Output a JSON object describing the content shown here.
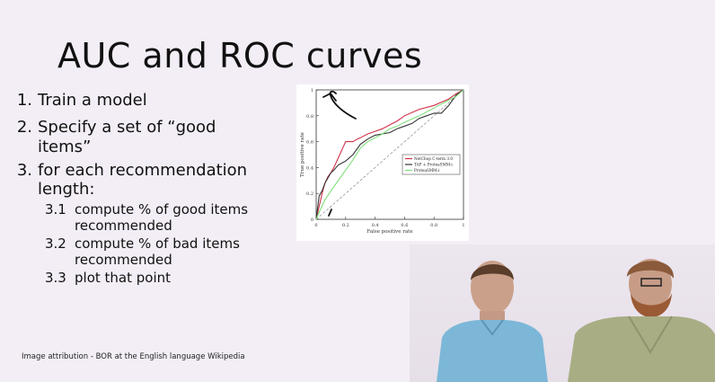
{
  "slide": {
    "title": "AUC and ROC curves",
    "steps": [
      {
        "num": "1.",
        "text": "Train a model"
      },
      {
        "num": "2.",
        "text": "Specify a set of “good"
      },
      {
        "num": "",
        "text": "items”"
      },
      {
        "num": "3.",
        "text": "for each recommendation"
      },
      {
        "num": "",
        "text": "length:"
      }
    ],
    "substeps": [
      {
        "num": "3.1",
        "line1": "compute % of good items",
        "line2": "recommended"
      },
      {
        "num": "3.2",
        "line1": "compute % of bad items",
        "line2": "recommended"
      },
      {
        "num": "3.3",
        "line1": "plot that point",
        "line2": ""
      }
    ],
    "attribution": "Image attribution - BOR at the English language Wikipedia"
  },
  "chart_data": {
    "type": "line",
    "xlabel": "False positive rate",
    "ylabel": "True positive rate",
    "xlim": [
      0,
      1
    ],
    "ylim": [
      0,
      1
    ],
    "xticks": [
      "0",
      "0.2",
      "0.4",
      "0.6",
      "0.8",
      "1"
    ],
    "yticks": [
      "0",
      "0.2",
      "0.4",
      "0.6",
      "0.8",
      "1"
    ],
    "legend_position": "center-right",
    "series": [
      {
        "name": "NetChop C-term 3.0",
        "color": "#d0304a",
        "x": [
          0,
          0.02,
          0.04,
          0.06,
          0.08,
          0.1,
          0.12,
          0.14,
          0.16,
          0.18,
          0.2,
          0.22,
          0.25,
          0.28,
          0.3,
          0.35,
          0.4,
          0.45,
          0.5,
          0.55,
          0.6,
          0.7,
          0.8,
          0.9,
          0.95,
          1
        ],
        "y": [
          0,
          0.1,
          0.2,
          0.28,
          0.33,
          0.36,
          0.4,
          0.45,
          0.5,
          0.55,
          0.6,
          0.6,
          0.6,
          0.62,
          0.63,
          0.66,
          0.68,
          0.7,
          0.73,
          0.76,
          0.8,
          0.85,
          0.88,
          0.93,
          0.97,
          1
        ]
      },
      {
        "name": "TAP + ProteaSMM-i",
        "color": "#333333",
        "x": [
          0,
          0.02,
          0.04,
          0.06,
          0.08,
          0.1,
          0.12,
          0.15,
          0.2,
          0.25,
          0.3,
          0.35,
          0.4,
          0.45,
          0.5,
          0.55,
          0.6,
          0.65,
          0.7,
          0.75,
          0.8,
          0.85,
          0.9,
          0.95,
          1
        ],
        "y": [
          0,
          0.18,
          0.22,
          0.28,
          0.32,
          0.36,
          0.38,
          0.42,
          0.45,
          0.5,
          0.58,
          0.62,
          0.65,
          0.66,
          0.67,
          0.7,
          0.72,
          0.74,
          0.78,
          0.8,
          0.82,
          0.82,
          0.88,
          0.96,
          1
        ]
      },
      {
        "name": "ProteaSMM-i",
        "color": "#7ee07a",
        "x": [
          0,
          0.03,
          0.06,
          0.1,
          0.15,
          0.2,
          0.25,
          0.3,
          0.35,
          0.4,
          0.45,
          0.5,
          0.55,
          0.6,
          0.7,
          0.8,
          0.9,
          0.95,
          1
        ],
        "y": [
          0,
          0.08,
          0.15,
          0.22,
          0.3,
          0.38,
          0.46,
          0.55,
          0.6,
          0.63,
          0.66,
          0.7,
          0.72,
          0.75,
          0.8,
          0.86,
          0.92,
          0.95,
          1
        ]
      }
    ]
  }
}
